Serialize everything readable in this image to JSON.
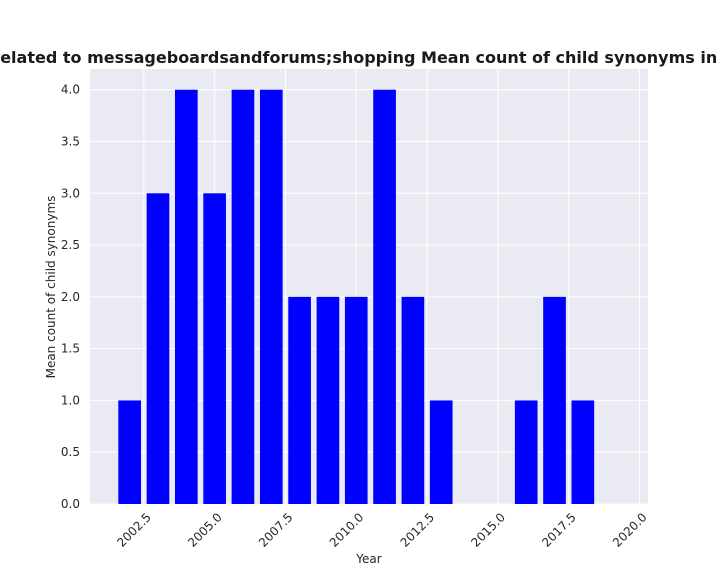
{
  "chart_data": {
    "type": "bar",
    "title": "es are related to messageboardsandforums;shopping Mean count of child synonyms in privacy",
    "xlabel": "Year",
    "ylabel": "Mean count of child synonyms",
    "x": [
      2002,
      2003,
      2004,
      2005,
      2006,
      2007,
      2008,
      2009,
      2010,
      2011,
      2012,
      2013,
      2016,
      2017,
      2018
    ],
    "values": [
      1,
      3,
      4,
      3,
      4,
      4,
      2,
      2,
      2,
      4,
      2,
      1,
      1,
      2,
      1
    ],
    "xlim": [
      2000.6,
      2020.3
    ],
    "ylim": [
      0,
      4.2
    ],
    "x_ticks": [
      "2002.5",
      "2005.0",
      "2007.5",
      "2010.0",
      "2012.5",
      "2015.0",
      "2017.5",
      "2020.0"
    ],
    "y_ticks": [
      "0.0",
      "0.5",
      "1.0",
      "1.5",
      "2.0",
      "2.5",
      "3.0",
      "3.5",
      "4.0"
    ],
    "bar_color": "#0000ff",
    "background_color": "#eaeaf2",
    "grid": true,
    "grid_color": "#ffffff"
  }
}
